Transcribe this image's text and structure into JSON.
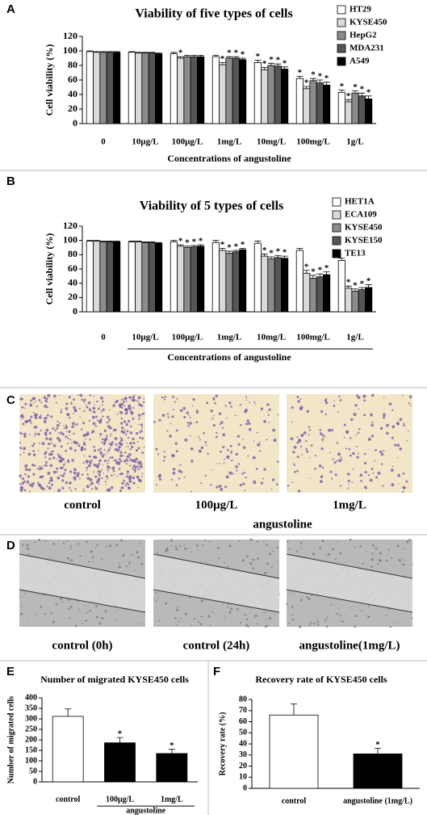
{
  "chart_data": [
    {
      "type": "bar",
      "panel": "A",
      "title": "Viability of five types of cells",
      "ylabel": "Cell viability (%)",
      "xlabel": "Concentrations of angustoline",
      "categories": [
        "0",
        "10μg/L",
        "100μg/L",
        "1mg/L",
        "10mg/L",
        "100mg/L",
        "1g/L"
      ],
      "ylim": [
        0,
        120
      ],
      "yticks": [
        0,
        20,
        40,
        60,
        80,
        100,
        120
      ],
      "legend": "right",
      "series": [
        {
          "name": "HT29",
          "color": "#ffffff",
          "values": [
            99,
            98,
            96,
            92,
            84,
            62,
            43
          ],
          "errors": [
            1,
            1,
            2,
            2,
            3,
            3,
            3
          ],
          "marks": [
            null,
            null,
            null,
            null,
            "*",
            "*",
            "*"
          ]
        },
        {
          "name": "KYSE450",
          "color": "#d9d9d9",
          "values": [
            98,
            97,
            90,
            81,
            74,
            48,
            30
          ],
          "errors": [
            1,
            1,
            2,
            3,
            3,
            3,
            3
          ],
          "marks": [
            null,
            null,
            "*",
            "*",
            "*",
            "*",
            "*"
          ]
        },
        {
          "name": "HepG2",
          "color": "#8c8c8c",
          "values": [
            98,
            97,
            92,
            90,
            80,
            59,
            42
          ],
          "errors": [
            1,
            1,
            2,
            2,
            3,
            3,
            3
          ],
          "marks": [
            null,
            null,
            null,
            "*",
            "*",
            "*",
            "*"
          ]
        },
        {
          "name": "MDA231",
          "color": "#555555",
          "values": [
            98,
            97,
            92,
            90,
            79,
            56,
            38
          ],
          "errors": [
            1,
            1,
            2,
            2,
            3,
            4,
            4
          ],
          "marks": [
            null,
            null,
            null,
            "*",
            "*",
            "*",
            "*"
          ]
        },
        {
          "name": "A549",
          "color": "#000000",
          "values": [
            98,
            96,
            92,
            88,
            75,
            53,
            34
          ],
          "errors": [
            1,
            1,
            2,
            2,
            3,
            4,
            4
          ],
          "marks": [
            null,
            null,
            null,
            "*",
            "*",
            "*",
            "*"
          ]
        }
      ]
    },
    {
      "type": "bar",
      "panel": "B",
      "title": "Viability of 5 types of cells",
      "ylabel": "Cell viability (%)",
      "xlabel": "Concentrations of angustoline",
      "categories": [
        "0",
        "10μg/L",
        "100μg/L",
        "1mg/L",
        "10mg/L",
        "100mg/L",
        "1g/L"
      ],
      "ylim": [
        0,
        120
      ],
      "yticks": [
        0,
        20,
        40,
        60,
        80,
        100,
        120
      ],
      "legend": "right",
      "series": [
        {
          "name": "HET1A",
          "color": "#ffffff",
          "values": [
            99,
            98,
            98,
            97,
            96,
            86,
            72
          ],
          "errors": [
            1,
            1,
            2,
            3,
            3,
            3,
            3
          ],
          "marks": [
            null,
            null,
            null,
            null,
            null,
            null,
            null
          ]
        },
        {
          "name": "ECA109",
          "color": "#d9d9d9",
          "values": [
            99,
            98,
            92,
            86,
            78,
            54,
            33
          ],
          "errors": [
            1,
            1,
            2,
            3,
            3,
            4,
            3
          ],
          "marks": [
            null,
            null,
            "*",
            "*",
            "*",
            "*",
            "*"
          ]
        },
        {
          "name": "KYSE450",
          "color": "#8c8c8c",
          "values": [
            98,
            97,
            90,
            82,
            74,
            47,
            29
          ],
          "errors": [
            1,
            1,
            2,
            3,
            3,
            4,
            3
          ],
          "marks": [
            null,
            null,
            "*",
            "*",
            "*",
            "*",
            "*"
          ]
        },
        {
          "name": "KYSE150",
          "color": "#555555",
          "values": [
            98,
            97,
            91,
            84,
            76,
            49,
            31
          ],
          "errors": [
            1,
            1,
            2,
            2,
            3,
            4,
            3
          ],
          "marks": [
            null,
            null,
            "*",
            "*",
            "*",
            "*",
            "*"
          ]
        },
        {
          "name": "TE13",
          "color": "#000000",
          "values": [
            98,
            96,
            92,
            87,
            75,
            52,
            34
          ],
          "errors": [
            1,
            1,
            2,
            2,
            3,
            4,
            4
          ],
          "marks": [
            null,
            null,
            "*",
            "*",
            "*",
            "*",
            "*"
          ]
        }
      ]
    },
    {
      "type": "bar",
      "panel": "E",
      "title": "Number of migrated KYSE450 cells",
      "ylabel": "Number of migrated cells",
      "group_label": "angustoline",
      "categories": [
        "control",
        "100μg/L",
        "1mg/L"
      ],
      "values": [
        312,
        186,
        135
      ],
      "errors": [
        35,
        25,
        20
      ],
      "marks": [
        null,
        "*",
        "*"
      ],
      "colors": [
        "#ffffff",
        "#000000",
        "#000000"
      ],
      "ylim": [
        0,
        400
      ],
      "yticks": [
        0,
        50,
        100,
        150,
        200,
        250,
        300,
        350,
        400
      ]
    },
    {
      "type": "bar",
      "panel": "F",
      "title": "Recovery rate of KYSE450 cells",
      "ylabel": "Recovery rate (%)",
      "categories": [
        "control",
        "angustoline (1mg/L)"
      ],
      "values": [
        66,
        31
      ],
      "errors": [
        10,
        5
      ],
      "marks": [
        null,
        "*"
      ],
      "colors": [
        "#ffffff",
        "#000000"
      ],
      "ylim": [
        0,
        80
      ],
      "yticks": [
        0,
        10,
        20,
        30,
        40,
        50,
        60,
        70,
        80
      ]
    }
  ],
  "images": [
    {
      "panel": "C",
      "captions": [
        "control",
        "100μg/L",
        "1mg/L"
      ],
      "group_label": "angustoline"
    },
    {
      "panel": "D",
      "captions": [
        "control (0h)",
        "control (24h)",
        "angustoline(1mg/L)"
      ]
    }
  ]
}
